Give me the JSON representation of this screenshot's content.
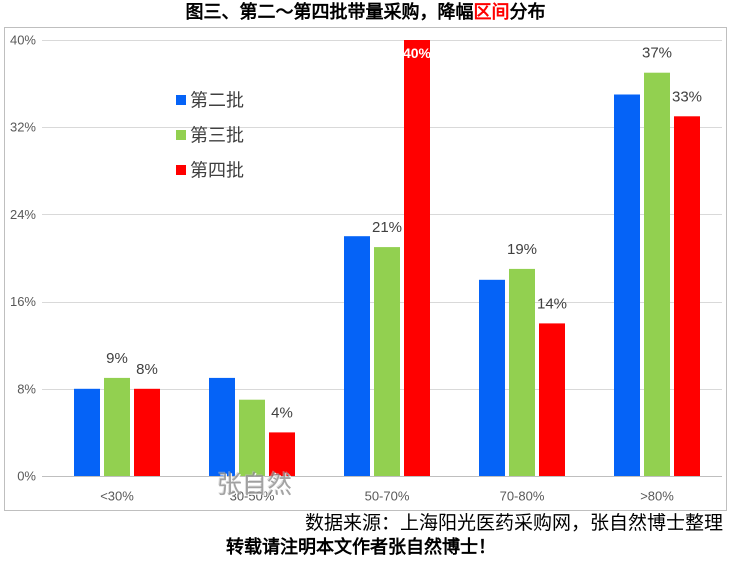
{
  "chart_data": {
    "type": "bar",
    "title": {
      "prefix": "图三、第二～第四批带量采购，降幅",
      "highlight": "区间",
      "suffix": "分布",
      "highlight_color": "#FF0000"
    },
    "categories": [
      "<30%",
      "30-50%",
      "50-70%",
      "70-80%",
      ">80%"
    ],
    "series": [
      {
        "name": "第二批",
        "color": "#0563F7",
        "values": [
          8,
          9,
          22,
          18,
          35
        ],
        "labels": [
          null,
          null,
          null,
          null,
          null
        ]
      },
      {
        "name": "第三批",
        "color": "#92D050",
        "values": [
          9,
          7,
          21,
          19,
          37
        ],
        "labels": [
          "9%",
          null,
          "21%",
          "19%",
          "37%"
        ]
      },
      {
        "name": "第四批",
        "color": "#FF0000",
        "values": [
          8,
          4,
          40,
          14,
          33
        ],
        "labels": [
          "8%",
          "4%",
          "40%",
          "14%",
          "33%"
        ]
      }
    ],
    "xlabel": "",
    "ylabel": "",
    "ylim": [
      0,
      40
    ],
    "yticks": [
      0,
      8,
      16,
      24,
      32,
      40
    ],
    "ytick_labels": [
      "0%",
      "8%",
      "16%",
      "24%",
      "32%",
      "40%"
    ],
    "grid": true,
    "legend_position": "top-left"
  },
  "watermark": "张自然",
  "footer": {
    "source": "数据来源：上海阳光医药采购网，张自然博士整理",
    "notice": "转载请注明本文作者张自然博士！"
  }
}
